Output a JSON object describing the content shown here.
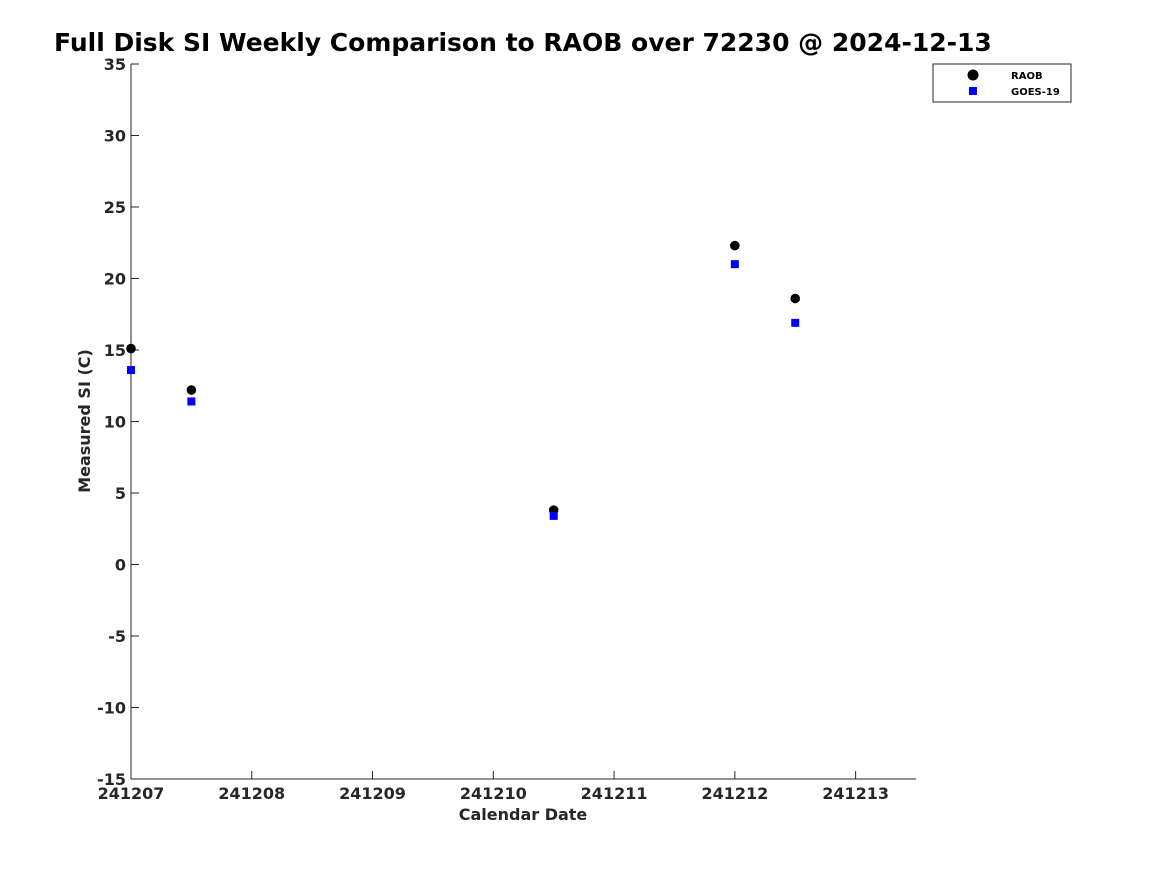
{
  "chart_data": {
    "type": "scatter",
    "title": "Full Disk SI Weekly Comparison to RAOB over 72230 @ 2024-12-13",
    "xlabel": "Calendar Date",
    "ylabel": "Measured SI (C)",
    "xlim": [
      "2024-12-07",
      "2024-12-13 12:00"
    ],
    "ylim": [
      -15,
      35
    ],
    "xticks": [
      "241207",
      "241208",
      "241209",
      "241210",
      "241211",
      "241212",
      "241213"
    ],
    "yticks": [
      35,
      30,
      25,
      20,
      15,
      10,
      5,
      0,
      -5,
      -10,
      -15
    ],
    "grid": false,
    "legend_position": "top-right",
    "series": [
      {
        "name": "RAOB",
        "marker": "circle",
        "color": "#000000",
        "points": [
          {
            "x": "2024-12-07 00:00",
            "y": 15.1
          },
          {
            "x": "2024-12-07 12:00",
            "y": 12.2
          },
          {
            "x": "2024-12-10 12:00",
            "y": 3.8
          },
          {
            "x": "2024-12-12 00:00",
            "y": 22.3
          },
          {
            "x": "2024-12-12 12:00",
            "y": 18.6
          }
        ]
      },
      {
        "name": "GOES-19",
        "marker": "square",
        "color": "#0000ff",
        "points": [
          {
            "x": "2024-12-07 00:00",
            "y": 13.6
          },
          {
            "x": "2024-12-07 12:00",
            "y": 11.4
          },
          {
            "x": "2024-12-10 12:00",
            "y": 3.4
          },
          {
            "x": "2024-12-12 00:00",
            "y": 21.0
          },
          {
            "x": "2024-12-12 12:00",
            "y": 16.9
          }
        ]
      }
    ]
  }
}
